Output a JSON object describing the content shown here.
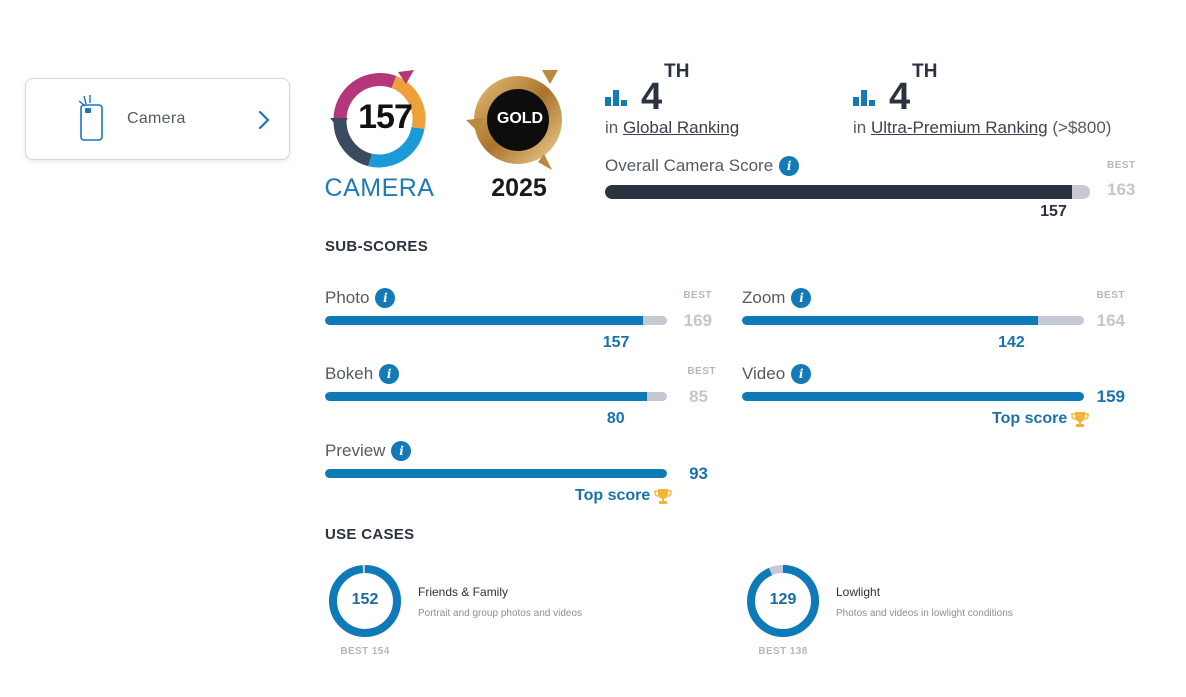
{
  "nav": {
    "label": "Camera"
  },
  "badges": {
    "score": "157",
    "score_label": "CAMERA",
    "gold_label": "GOLD",
    "gold_year": "2025"
  },
  "rankings": {
    "global": {
      "position": "4",
      "suffix": "TH",
      "prefix": "in",
      "name": "Global Ranking",
      "extra": ""
    },
    "ultra": {
      "position": "4",
      "suffix": "TH",
      "prefix": "in",
      "name": "Ultra-Premium Ranking",
      "extra": "(>$800)"
    }
  },
  "overall": {
    "label": "Overall Camera Score",
    "best_label": "BEST",
    "best": 163,
    "score": 157
  },
  "subscores_title": "SUB-SCORES",
  "subscores": {
    "photo": {
      "name": "Photo",
      "best_label": "BEST",
      "best": 169,
      "score": 157
    },
    "zoom": {
      "name": "Zoom",
      "best_label": "BEST",
      "best": 164,
      "score": 142
    },
    "bokeh": {
      "name": "Bokeh",
      "best_label": "BEST",
      "best": 85,
      "score": 80
    },
    "video": {
      "name": "Video",
      "score": 159,
      "top_label": "Top score"
    },
    "preview": {
      "name": "Preview",
      "score": 93,
      "top_label": "Top score"
    }
  },
  "usecases_title": "USE CASES",
  "usecases": {
    "friends": {
      "score": 152,
      "best": "BEST 154",
      "best_value": 154,
      "title": "Friends & Family",
      "desc": "Portrait and group photos and videos"
    },
    "lowlight": {
      "score": 129,
      "best": "BEST 138",
      "best_value": 138,
      "title": "Lowlight",
      "desc": "Photos and videos in lowlight conditions"
    }
  },
  "colors": {
    "accent_blue": "#0f7ab8",
    "dark_bar": "#2b3240",
    "track_gray": "#c5c9d3",
    "gold": "#c8963e"
  },
  "icons": {
    "nav": "camera-phone-icon",
    "chevron": "chevron-right-icon",
    "ranking": "bar-chart-icon",
    "info": "info-icon",
    "trophy": "trophy-icon"
  }
}
